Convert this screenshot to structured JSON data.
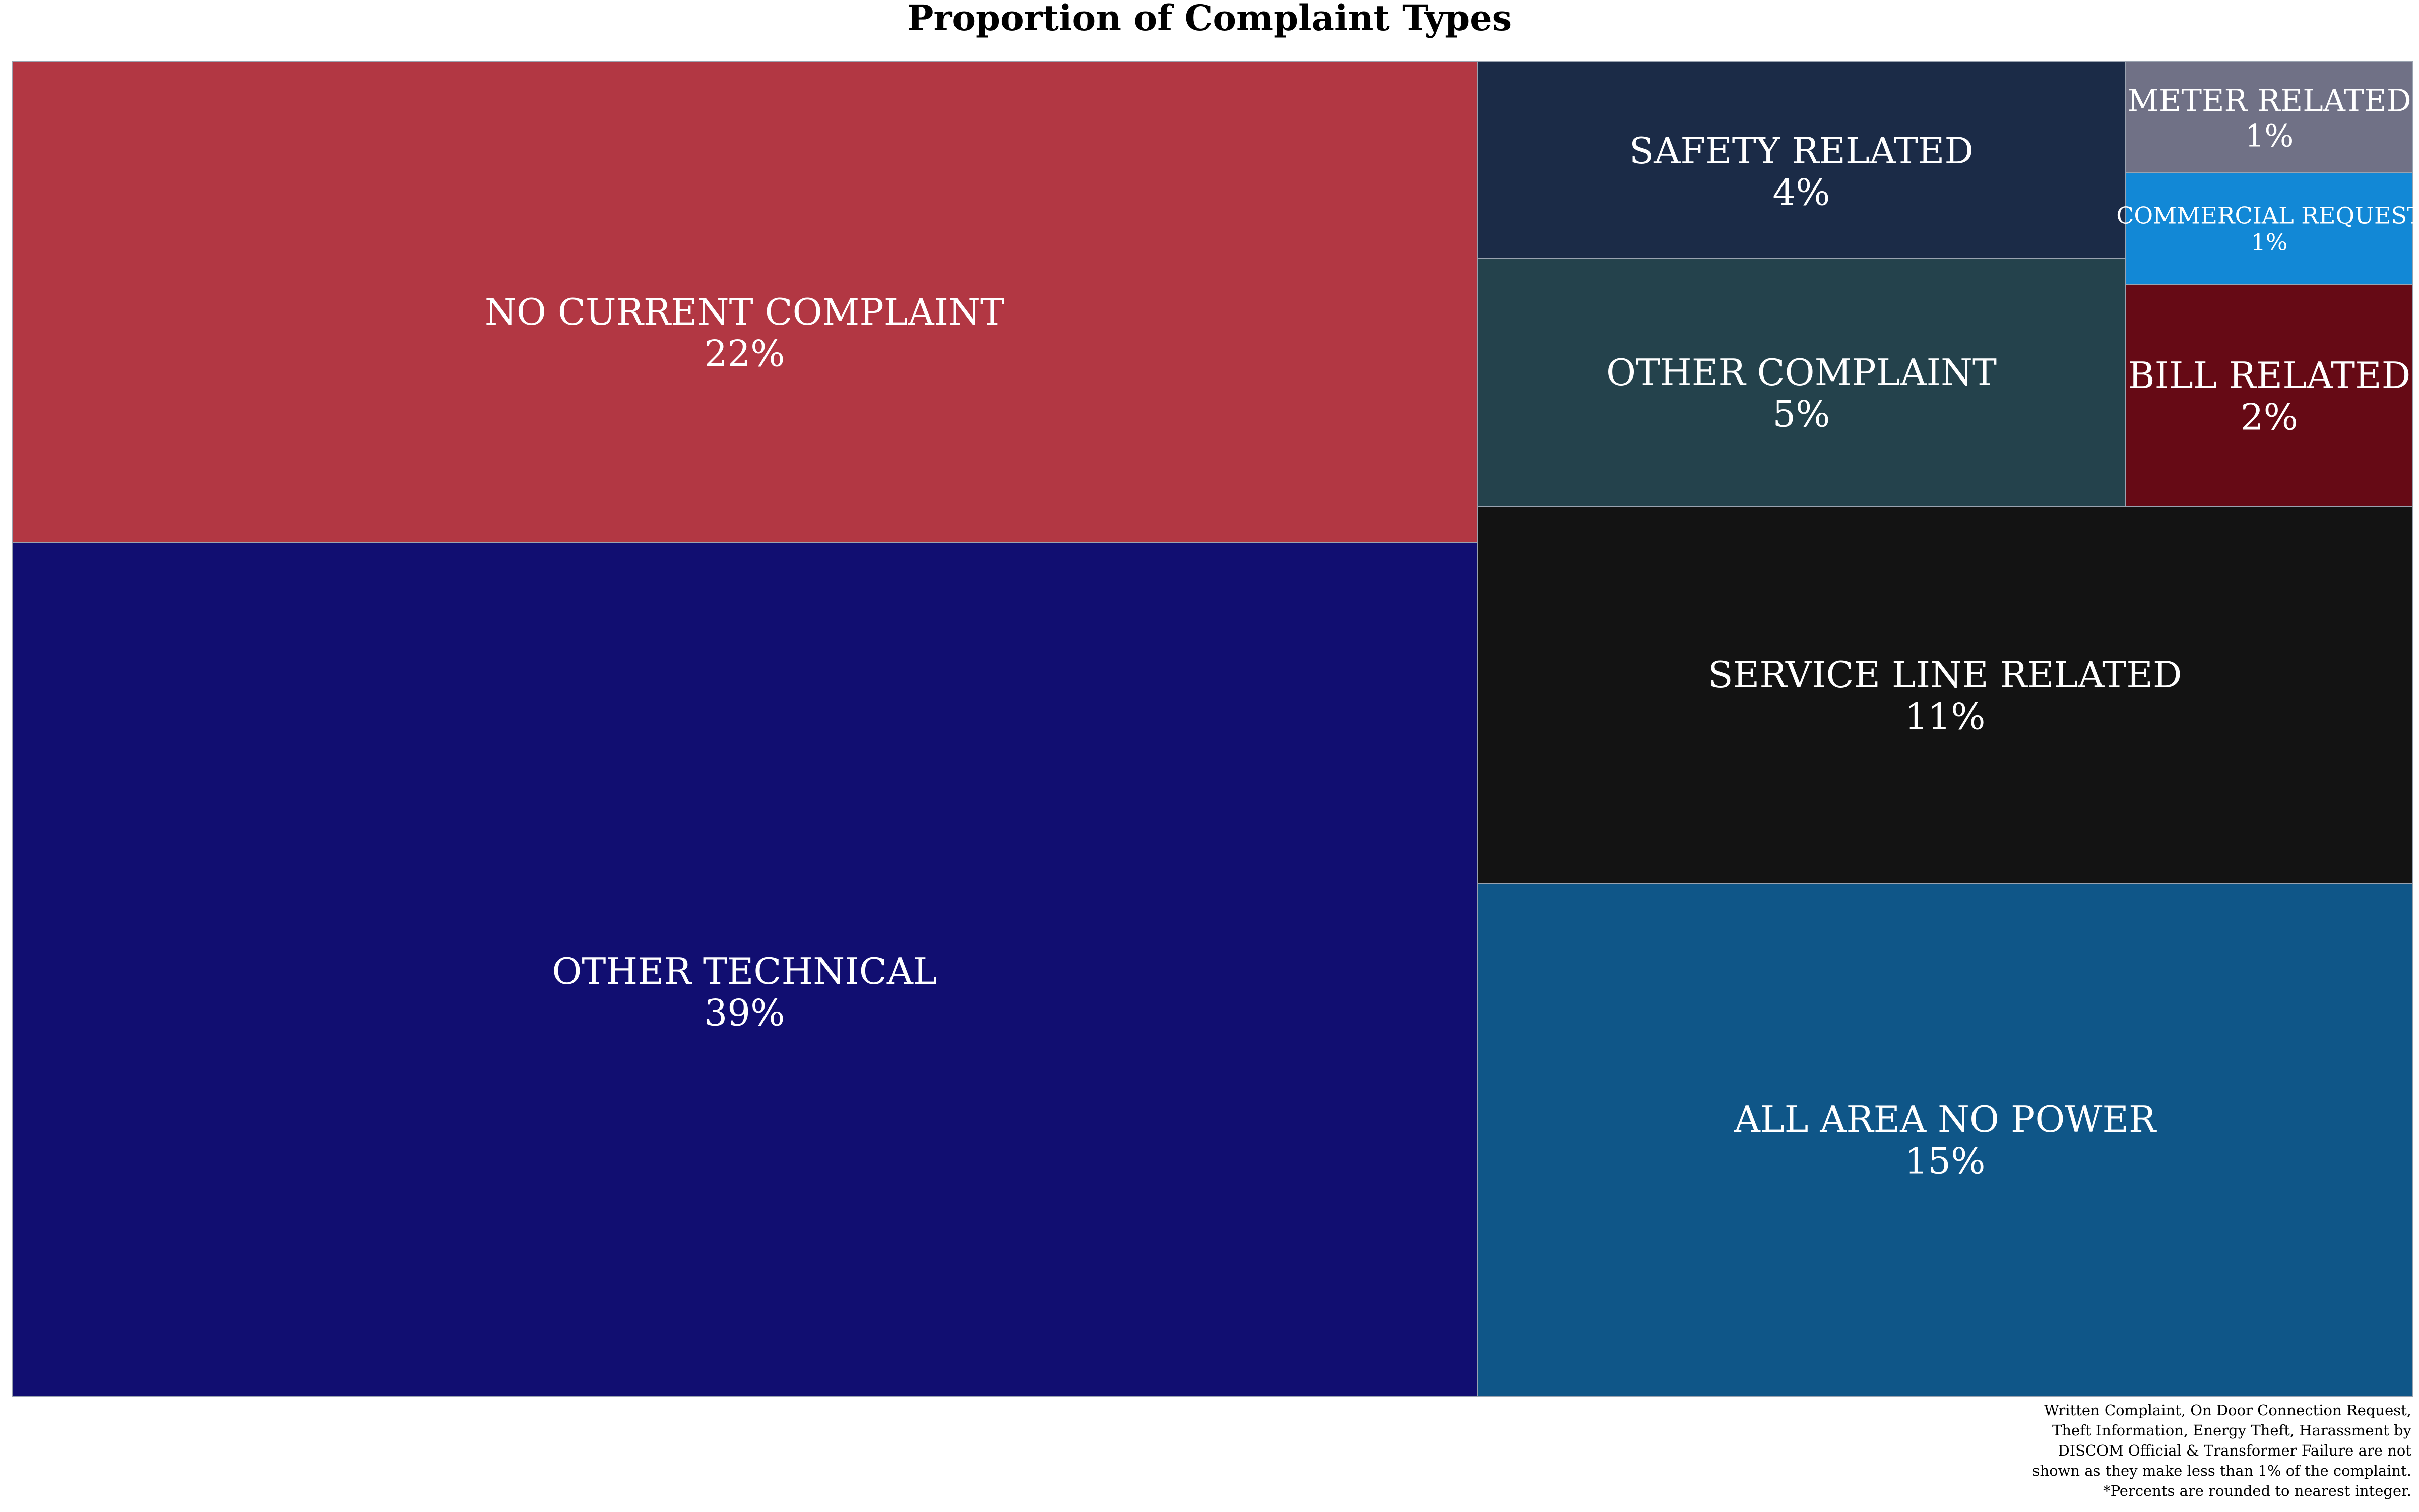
{
  "chart_data": {
    "type": "treemap",
    "title": "Proportion of Complaint Types",
    "tiles": [
      {
        "label": "NO CURRENT COMPLAINT",
        "value_label": "22%",
        "value": 22,
        "color": "#b23743"
      },
      {
        "label": "OTHER TECHNICAL",
        "value_label": "39%",
        "value": 39,
        "color": "#110e71"
      },
      {
        "label": "SAFETY RELATED",
        "value_label": "4%",
        "value": 4,
        "color": "#1b2b47"
      },
      {
        "label": "METER RELATED",
        "value_label": "1%",
        "value": 1,
        "color": "#707186"
      },
      {
        "label": "COMMERCIAL REQUEST",
        "value_label": "1%",
        "value": 1,
        "color": "#1288d6"
      },
      {
        "label": "OTHER COMPLAINT",
        "value_label": "5%",
        "value": 5,
        "color": "#24424c"
      },
      {
        "label": "BILL RELATED",
        "value_label": "2%",
        "value": 2,
        "color": "#660a15"
      },
      {
        "label": "SERVICE LINE RELATED",
        "value_label": "11%",
        "value": 11,
        "color": "#131313"
      },
      {
        "label": "ALL AREA NO POWER",
        "value_label": "15%",
        "value": 15,
        "color": "#0f5688"
      }
    ],
    "footnote_lines": [
      "Written Complaint, On Door Connection Request,",
      "Theft Information, Energy Theft, Harassment by",
      "DISCOM Official & Transformer Failure are not",
      "shown as they make less than 1% of the complaint.",
      "*Percents are rounded to nearest integer."
    ]
  }
}
